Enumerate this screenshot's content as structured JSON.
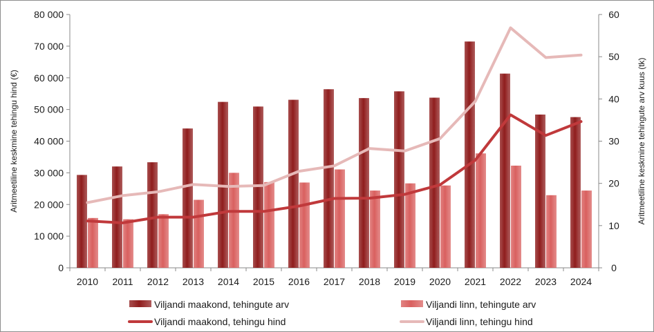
{
  "chart_data": {
    "type": "bar",
    "categories": [
      "2010",
      "2011",
      "2012",
      "2013",
      "2014",
      "2015",
      "2016",
      "2017",
      "2018",
      "2019",
      "2020",
      "2021",
      "2022",
      "2023",
      "2024"
    ],
    "series": [
      {
        "name": "Viljandi maakond, tehingute arv",
        "kind": "bar",
        "axis": "right",
        "color": "#8f1d1d",
        "values": [
          22,
          24,
          25,
          33,
          39.3,
          38.2,
          39.8,
          42.3,
          40.2,
          41.8,
          40.3,
          53.6,
          46,
          36.3,
          35.7
        ]
      },
      {
        "name": "Viljandi linn, tehingute arv",
        "kind": "bar",
        "axis": "right",
        "color": "#d9605f",
        "values": [
          11.8,
          11.5,
          12.7,
          16.1,
          22.5,
          20.3,
          20.2,
          23.3,
          18.3,
          20,
          19.5,
          27.1,
          24.2,
          17.2,
          18.3
        ]
      },
      {
        "name": "Viljandi maakond, tehingu hind",
        "kind": "line",
        "axis": "left",
        "color": "#c0393b",
        "values": [
          14800,
          14200,
          16000,
          16000,
          17800,
          17800,
          19500,
          21900,
          22000,
          23200,
          26200,
          34000,
          48300,
          41800,
          46200
        ]
      },
      {
        "name": "Viljandi linn, tehingu hind",
        "kind": "line",
        "axis": "left",
        "color": "#e6b9b8",
        "values": [
          20600,
          22800,
          24000,
          26300,
          25700,
          26000,
          30500,
          32200,
          37700,
          36900,
          40800,
          52600,
          75800,
          66400,
          67200
        ]
      }
    ],
    "y_left": {
      "label": "Aritmeetiline keskmine tehingu hind (€)",
      "ticks": [
        "0",
        "10 000",
        "20 000",
        "30 000",
        "40 000",
        "50 000",
        "60 000",
        "70 000",
        "80 000"
      ],
      "range": [
        0,
        80000
      ]
    },
    "y_right": {
      "label": "Aritmeetiline keskmine tehingute arv kuus (tk)",
      "ticks": [
        "0",
        "10",
        "20",
        "30",
        "40",
        "50",
        "60"
      ],
      "range": [
        0,
        60
      ]
    },
    "legend": {
      "placement": "bottom"
    },
    "grid": false
  }
}
